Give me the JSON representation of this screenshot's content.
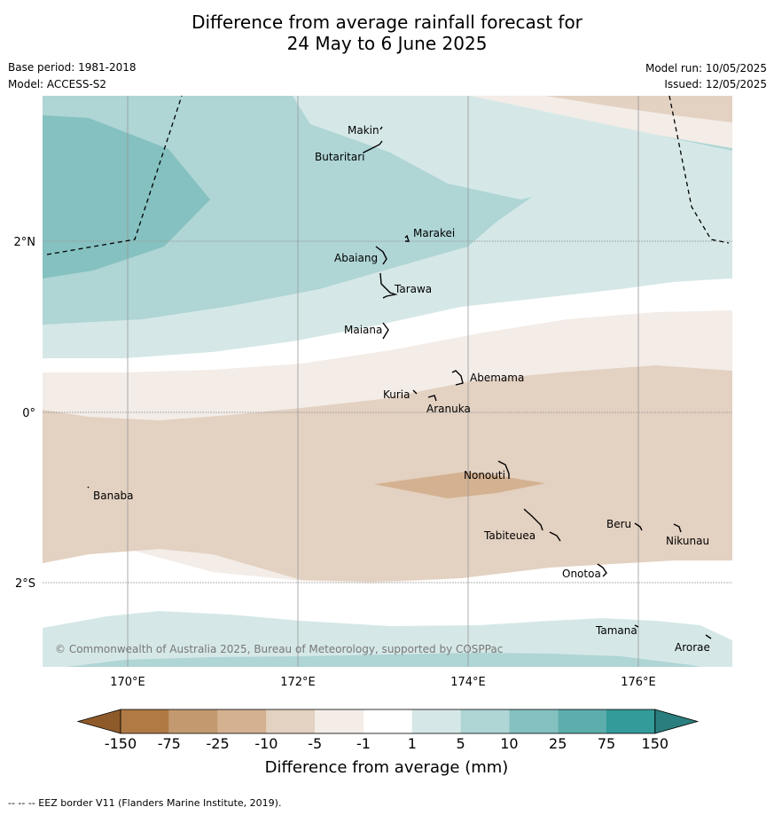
{
  "title_line1": "Difference from average rainfall forecast for",
  "title_line2": "24 May to 6 June 2025",
  "base_period": "Base period: 1981-2018",
  "model": "Model: ACCESS-S2",
  "model_run": "Model run: 10/05/2025",
  "issued": "Issued: 12/05/2025",
  "copyright": "© Commonwealth of Australia 2025, Bureau of Meteorology, supported by COSPPac",
  "lon_labels": [
    "170°E",
    "172°E",
    "174°E",
    "176°E"
  ],
  "lat_labels": [
    "2°N",
    "0°",
    "2°S"
  ],
  "places": [
    "Makin",
    "Butaritari",
    "Marakei",
    "Abaiang",
    "Tarawa",
    "Maiana",
    "Abemama",
    "Kuria",
    "Aranuka",
    "Nonouti",
    "Banaba",
    "Beru",
    "Nikunau",
    "Tabiteuea",
    "Onotoa",
    "Tamana",
    "Arorae"
  ],
  "colorbar": {
    "ticks": [
      "-150",
      "-75",
      "-25",
      "-10",
      "-5",
      "-1",
      "1",
      "5",
      "10",
      "25",
      "75",
      "150"
    ],
    "colors": [
      "#8f5a2a",
      "#b07a45",
      "#c39a70",
      "#d4b190",
      "#e3d1c1",
      "#f3ece7",
      "#ffffff",
      "#d5e8e7",
      "#afd5d5",
      "#84c1c0",
      "#5dadac",
      "#339b9a",
      "#2a7f7e"
    ],
    "label": "Difference from average (mm)"
  },
  "footer": "--  --  -- EEZ border V11 (Flanders Marine Institute, 2019)."
}
